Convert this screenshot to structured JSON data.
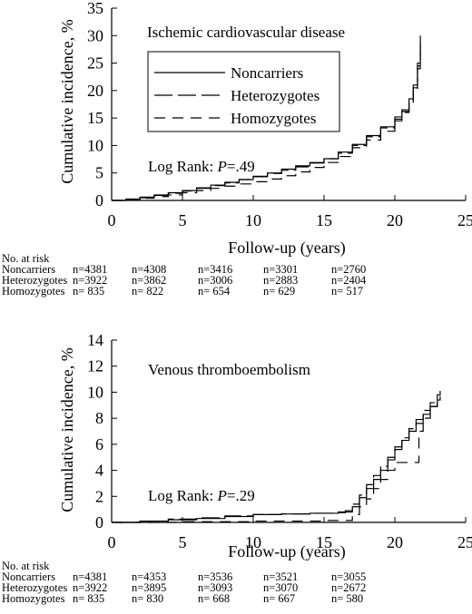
{
  "chart_data": [
    {
      "type": "line",
      "title": "Ischemic cardiovascular disease",
      "xlabel": "Follow-up (years)",
      "ylabel": "Cumulative incidence, %",
      "xlim": [
        0,
        25
      ],
      "ylim": [
        0,
        35
      ],
      "xticks": [
        0,
        5,
        10,
        15,
        20,
        25
      ],
      "yticks": [
        0,
        5,
        10,
        15,
        20,
        25,
        30,
        35
      ],
      "grid": false,
      "legend_position": "top",
      "annotation": {
        "prefix": "Log Rank: ",
        "p": "P",
        "value": "=.49"
      },
      "series": [
        {
          "name": "Noncarriers",
          "dash": "none",
          "x": [
            0,
            1,
            2,
            3,
            4,
            5,
            6,
            7,
            8,
            9,
            10,
            11,
            12,
            13,
            14,
            15,
            16,
            17,
            18,
            19,
            20,
            20.5,
            21,
            21.3,
            21.6,
            21.8
          ],
          "y": [
            0,
            0.25,
            0.6,
            1.0,
            1.4,
            1.8,
            2.3,
            2.8,
            3.3,
            3.8,
            4.4,
            5.0,
            5.7,
            6.3,
            6.9,
            7.6,
            8.8,
            10.2,
            11.8,
            13.4,
            15.2,
            16.5,
            18.5,
            21,
            25,
            30
          ]
        },
        {
          "name": "Heterozygotes",
          "dash": "long",
          "x": [
            0,
            1,
            2,
            3,
            4,
            5,
            6,
            7,
            8,
            9,
            10,
            11,
            12,
            13,
            14,
            15,
            16,
            17,
            18,
            19,
            20,
            20.5,
            21,
            21.3,
            21.6,
            21.8
          ],
          "y": [
            0,
            0.2,
            0.5,
            0.9,
            1.3,
            1.7,
            2.2,
            2.7,
            3.2,
            3.8,
            4.3,
            4.9,
            5.5,
            6.1,
            6.8,
            7.6,
            8.6,
            10.0,
            11.6,
            13.2,
            14.8,
            16.2,
            18.0,
            20.5,
            24.5,
            29
          ]
        },
        {
          "name": "Homozygotes",
          "dash": "short",
          "x": [
            0,
            1,
            2,
            3,
            4,
            5,
            6,
            7,
            8,
            9,
            10,
            11,
            12,
            13,
            14,
            15,
            16,
            17,
            18,
            19,
            20,
            20.5,
            21,
            21.3,
            21.6,
            21.8
          ],
          "y": [
            0,
            0.2,
            0.4,
            0.7,
            1.0,
            1.4,
            1.8,
            2.2,
            2.6,
            3.0,
            3.4,
            3.9,
            4.5,
            5.2,
            6.0,
            6.9,
            8.0,
            9.6,
            11.0,
            12.6,
            14.5,
            16.0,
            17.5,
            20,
            24,
            27
          ]
        }
      ],
      "at_risk": {
        "label": "No. at risk",
        "rows": [
          {
            "group": "Noncarriers",
            "values": [
              "n=4381",
              "n=4308",
              "n=3416",
              "n=3301",
              "n=2760"
            ]
          },
          {
            "group": "Heterozygotes",
            "values": [
              "n=3922",
              "n=3862",
              "n=3006",
              "n=2883",
              "n=2404"
            ]
          },
          {
            "group": "Homozygotes",
            "values": [
              "n= 835",
              "n= 822",
              "n= 654",
              "n= 629",
              "n= 517"
            ]
          }
        ]
      }
    },
    {
      "type": "line",
      "title": "Venous thromboembolism",
      "xlabel": "Follow-up (years)",
      "ylabel": "Cumulative incidence, %",
      "xlim": [
        0,
        25
      ],
      "ylim": [
        0,
        14
      ],
      "xticks": [
        0,
        5,
        10,
        15,
        20,
        25
      ],
      "yticks": [
        0,
        2,
        4,
        6,
        8,
        10,
        12,
        14
      ],
      "grid": false,
      "annotation": {
        "prefix": "Log Rank: ",
        "p": "P",
        "value": "=.29"
      },
      "series": [
        {
          "name": "Noncarriers",
          "dash": "none",
          "x": [
            0,
            2,
            4,
            6,
            8,
            10,
            12,
            14,
            16,
            16.5,
            17,
            17.5,
            18,
            18.5,
            19,
            19.5,
            20,
            20.5,
            21,
            21.5,
            22,
            22.5,
            23,
            23.2
          ],
          "y": [
            0,
            0.1,
            0.2,
            0.3,
            0.45,
            0.6,
            0.65,
            0.7,
            0.75,
            0.8,
            1.2,
            1.9,
            2.6,
            3.3,
            4.0,
            4.8,
            5.6,
            6.3,
            7.0,
            7.6,
            8.3,
            8.9,
            9.4,
            9.7
          ]
        },
        {
          "name": "Heterozygotes",
          "dash": "long",
          "x": [
            0,
            2,
            4,
            6,
            8,
            10,
            12,
            14,
            16,
            16.5,
            17,
            17.5,
            18,
            18.5,
            19,
            19.5,
            20,
            20.5,
            21,
            21.5,
            22,
            22.5,
            23,
            23.2
          ],
          "y": [
            0,
            0.1,
            0.25,
            0.35,
            0.5,
            0.6,
            0.65,
            0.7,
            0.8,
            0.9,
            1.4,
            2.1,
            2.9,
            3.6,
            4.3,
            5.0,
            5.8,
            6.5,
            7.2,
            7.9,
            8.6,
            9.2,
            9.8,
            10.1
          ]
        },
        {
          "name": "Homozygotes",
          "dash": "short",
          "x": [
            0,
            5,
            10,
            15,
            16.7,
            17,
            17.5,
            18,
            18.5,
            19,
            19.5,
            20,
            20.5,
            21,
            21.5,
            21.7,
            22,
            22.5,
            23
          ],
          "y": [
            0,
            0.05,
            0.1,
            0.15,
            0.15,
            0.6,
            1.2,
            1.8,
            2.6,
            3.3,
            4.0,
            4.6,
            4.6,
            4.6,
            4.6,
            7.0,
            8.0,
            8.9,
            9.6
          ]
        }
      ],
      "at_risk": {
        "label": "No. at risk",
        "rows": [
          {
            "group": "Noncarriers",
            "values": [
              "n=4381",
              "n=4353",
              "n=3536",
              "n=3521",
              "n=3055"
            ]
          },
          {
            "group": "Heterozygotes",
            "values": [
              "n=3922",
              "n=3895",
              "n=3093",
              "n=3070",
              "n=2672"
            ]
          },
          {
            "group": "Homozygotes",
            "values": [
              "n= 835",
              "n= 830",
              "n= 668",
              "n= 667",
              "n= 580"
            ]
          }
        ]
      }
    }
  ]
}
